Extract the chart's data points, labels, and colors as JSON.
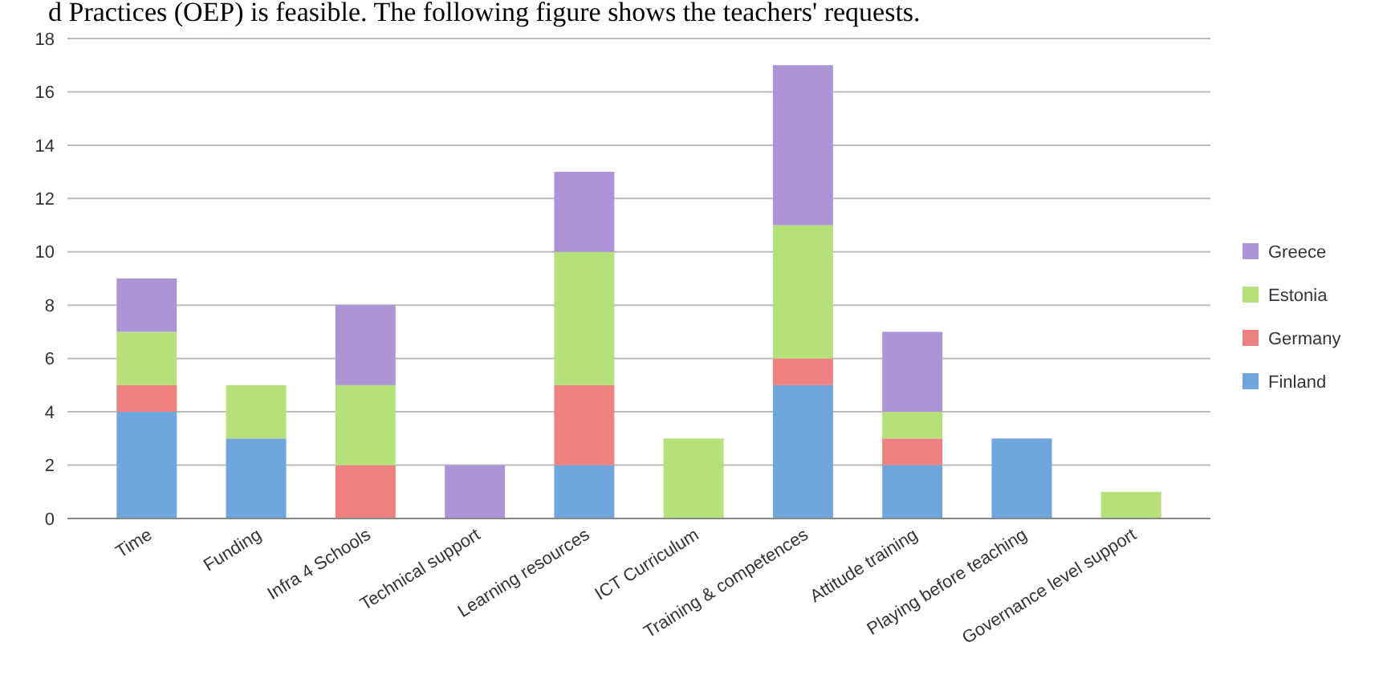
{
  "chart_data": {
    "type": "bar",
    "stacked": true,
    "annotations": [
      "d Practices (OEP) is feasible. The following figure shows the teachers' requests."
    ],
    "categories": [
      "Time",
      "Funding",
      "Infra 4 Schools",
      "Technical support",
      "Learning resources",
      "ICT Curriculum",
      "Training & competences",
      "Attitude training",
      "Playing before teaching",
      "Governance level support"
    ],
    "series": [
      {
        "name": "Finland",
        "color": "#6fa6dd",
        "values": [
          4,
          3,
          0,
          0,
          2,
          0,
          5,
          2,
          3,
          0
        ]
      },
      {
        "name": "Germany",
        "color": "#ee8080",
        "values": [
          1,
          0,
          2,
          0,
          3,
          0,
          1,
          1,
          0,
          0
        ]
      },
      {
        "name": "Estonia",
        "color": "#b6e07a",
        "values": [
          2,
          2,
          3,
          0,
          5,
          3,
          5,
          1,
          0,
          1
        ]
      },
      {
        "name": "Greece",
        "color": "#ad94d6",
        "values": [
          2,
          0,
          3,
          2,
          3,
          0,
          6,
          3,
          0,
          0
        ]
      }
    ],
    "ylim": [
      0,
      18
    ],
    "yticks": [
      0,
      2,
      4,
      6,
      8,
      10,
      12,
      14,
      16,
      18
    ],
    "grid": "y",
    "legend": "right"
  }
}
